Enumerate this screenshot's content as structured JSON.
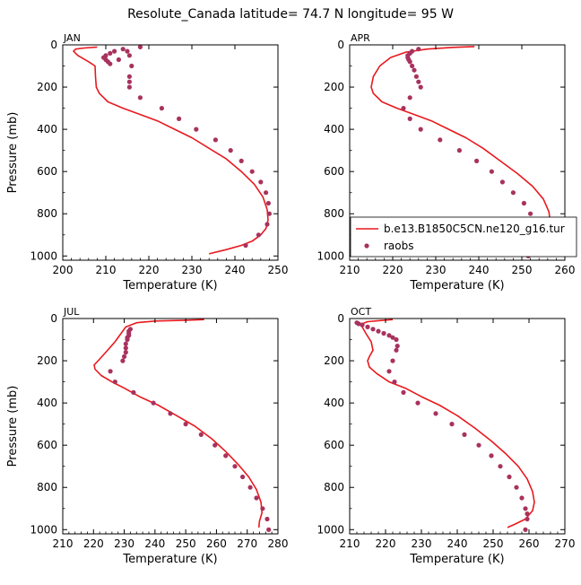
{
  "title": "Resolute_Canada   latitude= 74.7 N longitude= 95 W",
  "colors": {
    "model": "#e8191e",
    "obs": "#a8325e",
    "axis": "#000000"
  },
  "legend": {
    "model_label": "b.e13.B1850C5CN.ne120_g16.tur",
    "obs_label": "raobs",
    "panel": "APR"
  },
  "chart_data": [
    {
      "type": "line",
      "panel": "JAN",
      "xlabel": "Temperature (K)",
      "ylabel": "Pressure (mb)",
      "xlim": [
        200,
        250
      ],
      "ylim": [
        1020,
        0
      ],
      "ylog": false,
      "xticks": [
        200,
        210,
        220,
        230,
        240,
        250
      ],
      "yticks": [
        0,
        200,
        400,
        600,
        800,
        1000
      ],
      "series": [
        {
          "role": "model",
          "style": "line",
          "x": [
            208,
            205,
            203,
            202.5,
            203.5,
            206,
            207.5,
            207.6,
            207.8,
            208.5,
            210.5,
            214,
            218,
            222,
            226,
            230,
            234,
            238,
            241.5,
            244.5,
            246.5,
            247.5,
            247.7,
            247.2,
            246,
            244,
            241.5,
            238,
            234
          ],
          "y": [
            10,
            15,
            20,
            30,
            50,
            80,
            100,
            150,
            200,
            230,
            270,
            300,
            330,
            360,
            400,
            440,
            490,
            540,
            600,
            660,
            720,
            780,
            830,
            870,
            900,
            930,
            950,
            970,
            990
          ]
        },
        {
          "role": "obs",
          "style": "points",
          "x": [
            218,
            214,
            212,
            211,
            210,
            209.5,
            210,
            210.5,
            211,
            213,
            215,
            215.5,
            216,
            215.5,
            215.5,
            215.5,
            218,
            223,
            227,
            231,
            235.5,
            239,
            241.5,
            244,
            246,
            247.2,
            247.8,
            248,
            247.5,
            245.5,
            242.5
          ],
          "y": [
            10,
            20,
            30,
            40,
            50,
            60,
            70,
            80,
            90,
            70,
            30,
            50,
            100,
            150,
            175,
            200,
            250,
            300,
            350,
            400,
            450,
            500,
            550,
            600,
            650,
            700,
            750,
            800,
            850,
            900,
            950
          ]
        }
      ]
    },
    {
      "type": "line",
      "panel": "APR",
      "xlabel": "Temperature (K)",
      "ylabel": "",
      "xlim": [
        210,
        260
      ],
      "ylim": [
        1020,
        0
      ],
      "ylog": false,
      "xticks": [
        210,
        220,
        230,
        240,
        250,
        260
      ],
      "yticks": [
        0,
        200,
        400,
        600,
        800,
        1000
      ],
      "series": [
        {
          "role": "model",
          "style": "line",
          "x": [
            239,
            234,
            228,
            223,
            219.5,
            217,
            215.5,
            215,
            215.5,
            217.5,
            221,
            225,
            229,
            233,
            237,
            241,
            245,
            249,
            252.5,
            255,
            256.3,
            256.6,
            256,
            254.5,
            252,
            249,
            247
          ],
          "y": [
            8,
            12,
            20,
            35,
            60,
            100,
            150,
            200,
            230,
            270,
            300,
            330,
            360,
            400,
            440,
            490,
            550,
            610,
            670,
            730,
            790,
            840,
            880,
            920,
            950,
            980,
            995
          ]
        },
        {
          "role": "obs",
          "style": "points",
          "x": [
            226,
            224.5,
            224,
            223.5,
            223.5,
            223.7,
            224,
            224.5,
            225,
            225.5,
            226,
            226.5,
            224,
            222.5,
            224,
            226.5,
            231,
            235.5,
            239.5,
            243,
            245.5,
            248,
            250.5,
            252,
            253,
            253.3,
            253.2,
            252.8,
            252,
            251.5
          ],
          "y": [
            20,
            30,
            40,
            50,
            60,
            70,
            80,
            100,
            120,
            150,
            175,
            200,
            250,
            300,
            350,
            400,
            450,
            500,
            550,
            600,
            650,
            700,
            750,
            800,
            850,
            875,
            900,
            925,
            950,
            1000
          ]
        }
      ]
    },
    {
      "type": "line",
      "panel": "JUL",
      "xlabel": "Temperature (K)",
      "ylabel": "Pressure (mb)",
      "xlim": [
        210,
        280
      ],
      "ylim": [
        1020,
        0
      ],
      "ylog": false,
      "xticks": [
        210,
        220,
        230,
        240,
        250,
        260,
        270,
        280
      ],
      "yticks": [
        0,
        200,
        400,
        600,
        800,
        1000
      ],
      "series": [
        {
          "role": "model",
          "style": "line",
          "x": [
            256,
            250,
            240,
            234,
            230.5,
            229,
            227,
            224,
            221.5,
            220.2,
            220.5,
            222.5,
            226,
            230,
            235,
            241,
            247,
            253,
            258.5,
            263,
            267,
            270.5,
            273,
            274.5,
            274.8,
            274,
            273.8
          ],
          "y": [
            5,
            8,
            12,
            20,
            40,
            70,
            110,
            160,
            200,
            220,
            240,
            270,
            300,
            330,
            370,
            410,
            460,
            510,
            570,
            630,
            690,
            750,
            810,
            870,
            920,
            960,
            990
          ]
        },
        {
          "role": "obs",
          "style": "points",
          "x": [
            232,
            231.5,
            231.5,
            231.5,
            231,
            231,
            230.5,
            230.5,
            230.5,
            230,
            229.5,
            225.5,
            227,
            233,
            239.5,
            245,
            250,
            255,
            259.5,
            263,
            266,
            268.5,
            271,
            273,
            275,
            276.5,
            277
          ],
          "y": [
            50,
            60,
            70,
            80,
            90,
            100,
            120,
            140,
            160,
            180,
            200,
            250,
            300,
            350,
            400,
            450,
            500,
            550,
            600,
            650,
            700,
            750,
            800,
            850,
            900,
            950,
            1000
          ]
        }
      ]
    },
    {
      "type": "line",
      "panel": "OCT",
      "xlabel": "Temperature (K)",
      "ylabel": "",
      "xlim": [
        210,
        270
      ],
      "ylim": [
        1020,
        0
      ],
      "ylog": false,
      "xticks": [
        210,
        220,
        230,
        240,
        250,
        260,
        270
      ],
      "yticks": [
        0,
        200,
        400,
        600,
        800,
        1000
      ],
      "series": [
        {
          "role": "model",
          "style": "line",
          "x": [
            222,
            218,
            215,
            213.5,
            213.5,
            214.5,
            216,
            216.5,
            215.5,
            215,
            215.5,
            217.5,
            221,
            225.5,
            230,
            235,
            240,
            245,
            249.5,
            253.5,
            257,
            259.5,
            261,
            261.5,
            261,
            259,
            256,
            254
          ],
          "y": [
            5,
            10,
            15,
            25,
            40,
            70,
            110,
            150,
            180,
            200,
            230,
            260,
            300,
            330,
            370,
            410,
            460,
            520,
            580,
            640,
            700,
            760,
            820,
            870,
            910,
            950,
            975,
            990
          ]
        },
        {
          "role": "obs",
          "style": "points",
          "x": [
            212,
            212.5,
            213.5,
            215,
            216.5,
            218,
            219.5,
            221,
            222,
            223,
            223.3,
            223,
            222,
            221,
            222.5,
            225,
            229,
            234,
            238.5,
            242,
            246,
            249.5,
            252,
            254.5,
            256.5,
            258,
            259,
            259.5,
            259.5,
            259
          ],
          "y": [
            20,
            25,
            30,
            40,
            50,
            60,
            70,
            80,
            90,
            100,
            130,
            150,
            200,
            250,
            300,
            350,
            400,
            450,
            500,
            550,
            600,
            650,
            700,
            750,
            800,
            850,
            900,
            925,
            950,
            1000
          ]
        }
      ]
    }
  ]
}
